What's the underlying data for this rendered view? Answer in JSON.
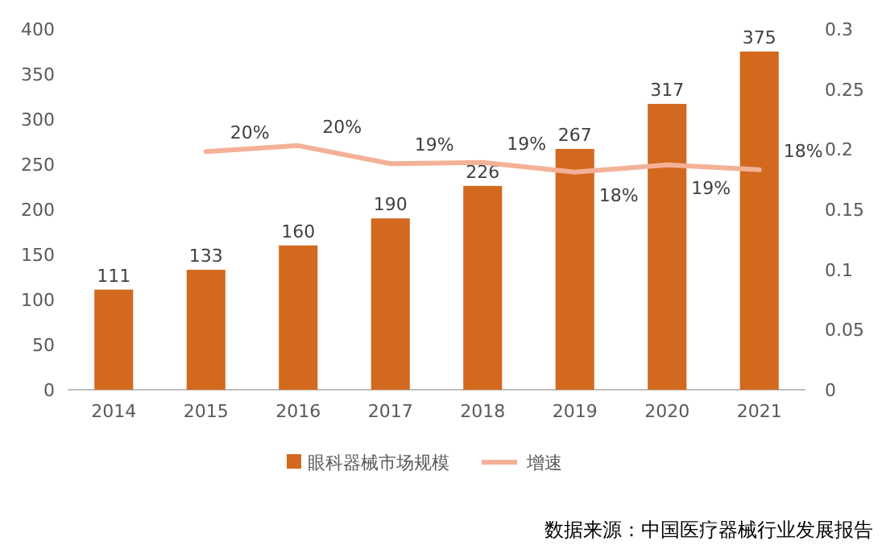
{
  "chart_data": {
    "type": "bar",
    "categories": [
      "2014",
      "2015",
      "2016",
      "2017",
      "2018",
      "2019",
      "2020",
      "2021"
    ],
    "series": [
      {
        "name": "眼科器械市场规模",
        "color": "#d2691e",
        "values": [
          111,
          133,
          160,
          190,
          226,
          267,
          317,
          375
        ],
        "value_labels": [
          "111",
          "133",
          "160",
          "190",
          "226",
          "267",
          "317",
          "375"
        ]
      },
      {
        "name": "增速",
        "type": "line",
        "axis": "y2",
        "color": "#f4b197",
        "values": [
          null,
          0.198,
          0.203,
          0.188,
          0.189,
          0.181,
          0.187,
          0.183
        ],
        "value_labels": [
          null,
          "20%",
          "20%",
          "19%",
          "19%",
          "18%",
          "19%",
          "18%"
        ]
      }
    ],
    "ylim": [
      0,
      400
    ],
    "yticks": [
      0,
      50,
      100,
      150,
      200,
      250,
      300,
      350,
      400
    ],
    "y2lim": [
      0,
      0.3
    ],
    "y2ticks": [
      0,
      0.05,
      0.1,
      0.15,
      0.2,
      0.25,
      0.3
    ],
    "legend": "bottom",
    "grid": false,
    "marker": "none",
    "annotations": [
      "数据来源：中国医疗器械行业发展报告"
    ]
  }
}
